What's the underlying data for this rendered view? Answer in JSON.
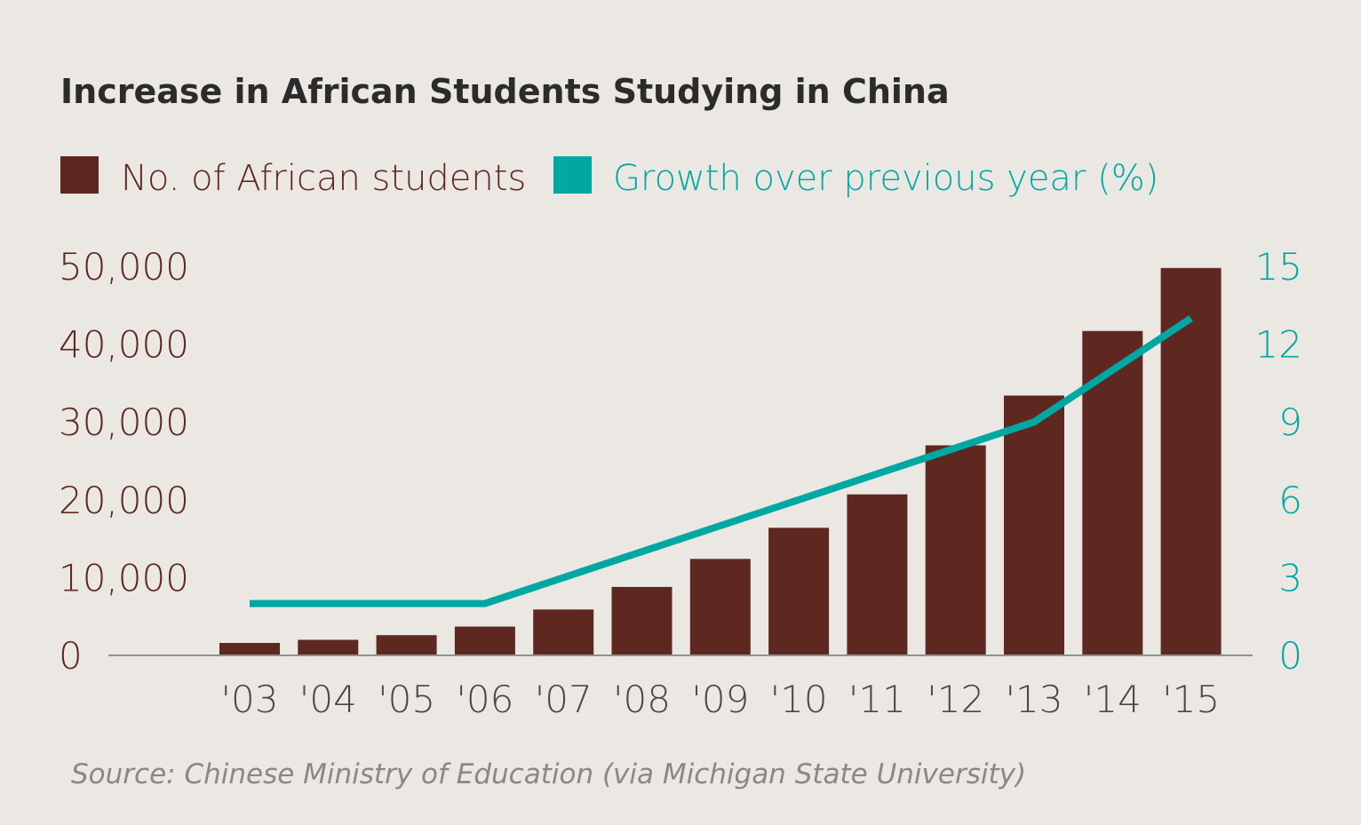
{
  "chart_data": {
    "type": "bar+line",
    "title": "Increase in African Students Studying in China",
    "categories": [
      "'03",
      "'04",
      "'05",
      "'06",
      "'07",
      "'08",
      "'09",
      "'10",
      "'11",
      "'12",
      "'13",
      "'14",
      "'15"
    ],
    "series": [
      {
        "name": "No. of African students",
        "type": "bar",
        "axis": "left",
        "color": "#5e2820",
        "values": [
          1600,
          2000,
          2600,
          3700,
          5900,
          8800,
          12400,
          16400,
          20700,
          27000,
          33400,
          41700,
          49800
        ]
      },
      {
        "name": "Growth over previous year (%)",
        "type": "line",
        "axis": "right",
        "color": "#00a8a3",
        "values": [
          2,
          2,
          2,
          2,
          3,
          4,
          5,
          6,
          7,
          8,
          9,
          11,
          13
        ]
      }
    ],
    "y_left": {
      "range": [
        0,
        50000
      ],
      "ticks": [
        "0",
        "10,000",
        "20,000",
        "30,000",
        "40,000",
        "50,000"
      ],
      "color": "#5e2820"
    },
    "y_right": {
      "range": [
        0,
        15
      ],
      "ticks": [
        "0",
        "3",
        "6",
        "9",
        "12",
        "15"
      ],
      "color": "#00a8a3"
    },
    "legend_placement": "top-left",
    "grid": false,
    "source": "Source: Chinese Ministry of Education (via Michigan State University)"
  }
}
